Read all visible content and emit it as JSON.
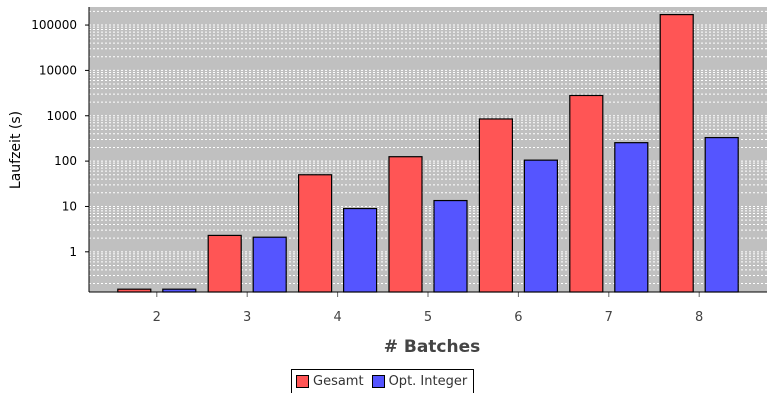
{
  "chart_data": {
    "type": "bar",
    "xlabel": "# Batches",
    "ylabel": "Laufzeit (s)",
    "yscale": "log",
    "ylim": [
      0.13,
      250000
    ],
    "grid": true,
    "legend_position": "bottom-center",
    "categories": [
      "2",
      "3",
      "4",
      "5",
      "6",
      "7",
      "8"
    ],
    "yticks": [
      "1",
      "10",
      "100",
      "1000",
      "10000",
      "100000"
    ],
    "series": [
      {
        "name": "Gesamt",
        "color": "#ff5555",
        "values": [
          0.15,
          2.3,
          50,
          125,
          850,
          2800,
          170000
        ]
      },
      {
        "name": "Opt. Integer",
        "color": "#5555ff",
        "values": [
          0.15,
          2.1,
          9,
          13.5,
          105,
          255,
          330
        ]
      }
    ]
  }
}
